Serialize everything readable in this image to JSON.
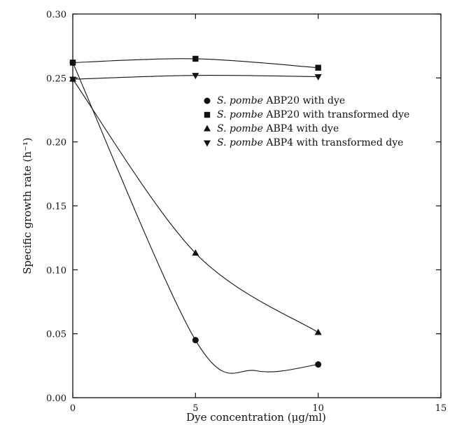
{
  "chart_data": {
    "type": "line",
    "title": "",
    "xlabel": "Dye concentration (μg/ml)",
    "ylabel": "Specific growth rate (h⁻¹)",
    "xlim": [
      0,
      15
    ],
    "ylim": [
      0,
      0.3
    ],
    "x_ticks": [
      "0",
      "5",
      "10",
      "15"
    ],
    "y_ticks": [
      "0.00",
      "0.05",
      "0.10",
      "0.15",
      "0.20",
      "0.25",
      "0.30"
    ],
    "grid": false,
    "legend_position": "center-right",
    "series": [
      {
        "name": "ABP20 with dye",
        "species": "S. pombe",
        "marker": "circle",
        "x": [
          0,
          5,
          10
        ],
        "y": [
          0.262,
          0.045,
          0.026
        ],
        "path_points": [
          [
            0,
            0.262
          ],
          [
            5,
            0.045
          ],
          [
            7.5,
            0.021
          ],
          [
            10,
            0.026
          ]
        ]
      },
      {
        "name": "ABP20 with transformed dye",
        "species": "S. pombe",
        "marker": "square",
        "x": [
          0,
          5,
          10
        ],
        "y": [
          0.262,
          0.265,
          0.258
        ],
        "path_points": [
          [
            0,
            0.262
          ],
          [
            5,
            0.265
          ],
          [
            10,
            0.258
          ]
        ]
      },
      {
        "name": "ABP4 with dye",
        "species": "S. pombe",
        "marker": "triangle-up",
        "x": [
          0,
          5,
          10
        ],
        "y": [
          0.249,
          0.113,
          0.051
        ],
        "path_points": [
          [
            0,
            0.249
          ],
          [
            5,
            0.113
          ],
          [
            10,
            0.051
          ]
        ]
      },
      {
        "name": "ABP4 with transformed dye",
        "species": "S. pombe",
        "marker": "triangle-down",
        "x": [
          0,
          5,
          10
        ],
        "y": [
          0.249,
          0.252,
          0.251
        ],
        "path_points": [
          [
            0,
            0.249
          ],
          [
            5,
            0.252
          ],
          [
            10,
            0.251
          ]
        ]
      }
    ]
  }
}
